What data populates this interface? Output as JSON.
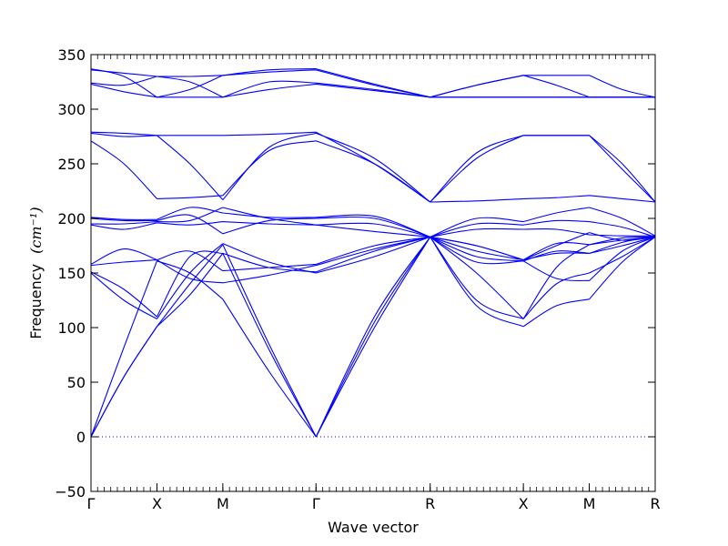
{
  "chart_data": {
    "type": "line",
    "xlabel": "Wave vector",
    "ylabel": "Frequency",
    "ylabel_unit": "(cm⁻¹)",
    "ylim": [
      -50,
      350
    ],
    "yticks": [
      -50,
      0,
      50,
      100,
      150,
      200,
      250,
      300,
      350
    ],
    "high_symmetry_points": [
      {
        "label": "Γ",
        "position": 0
      },
      {
        "label": "X",
        "position": 1
      },
      {
        "label": "M",
        "position": 2
      },
      {
        "label": "Γ",
        "position": 3.414
      },
      {
        "label": "R",
        "position": 5.146
      },
      {
        "label": "X",
        "position": 6.56
      },
      {
        "label": "M",
        "position": 7.56
      },
      {
        "label": "R",
        "position": 8.56
      }
    ],
    "zero_line": true,
    "line_color": "#0000ff",
    "bands": [
      {
        "x": [
          0,
          0.5,
          1,
          1.5,
          2,
          2.7,
          3.414,
          4.3,
          5.146,
          5.85,
          6.56,
          7.06,
          7.56,
          8.06,
          8.56
        ],
        "y": [
          0,
          55,
          101,
          130,
          168,
          80,
          0,
          100,
          183,
          120,
          101,
          120,
          126,
          160,
          183
        ]
      },
      {
        "x": [
          0,
          0.5,
          1,
          1.5,
          2,
          2.7,
          3.414,
          4.3,
          5.146,
          5.85,
          6.56,
          7.06,
          7.56,
          8.06,
          8.56
        ],
        "y": [
          0,
          55,
          101,
          140,
          176,
          85,
          0,
          105,
          183,
          125,
          108,
          140,
          150,
          165,
          183
        ]
      },
      {
        "x": [
          0,
          0.5,
          1,
          1.5,
          2,
          2.7,
          3.414,
          4.3,
          5.146,
          5.85,
          6.56,
          7.06,
          7.56,
          8.06,
          8.56
        ],
        "y": [
          0,
          82,
          161,
          150,
          126,
          60,
          0,
          110,
          183,
          165,
          161,
          145,
          143,
          170,
          183
        ]
      },
      {
        "x": [
          0,
          0.5,
          1,
          1.5,
          2,
          2.7,
          3.414,
          4.3,
          5.146,
          5.85,
          6.56,
          7.06,
          7.56,
          8.06,
          8.56
        ],
        "y": [
          150,
          125,
          108,
          150,
          177,
          160,
          150,
          165,
          183,
          160,
          161,
          170,
          168,
          175,
          183
        ]
      },
      {
        "x": [
          0,
          0.5,
          1,
          1.5,
          2,
          2.7,
          3.414,
          4.3,
          5.146,
          5.85,
          6.56,
          7.06,
          7.56,
          8.06,
          8.56
        ],
        "y": [
          151,
          135,
          110,
          165,
          168,
          155,
          151,
          170,
          183,
          150,
          108,
          155,
          176,
          180,
          183
        ]
      },
      {
        "x": [
          0,
          0.5,
          1,
          1.5,
          2,
          2.7,
          3.414,
          4.3,
          5.146,
          5.85,
          6.56,
          7.06,
          7.56,
          8.06,
          8.56
        ],
        "y": [
          157,
          160,
          162,
          145,
          141,
          148,
          157,
          172,
          183,
          170,
          162,
          175,
          187,
          180,
          183
        ]
      },
      {
        "x": [
          0,
          0.5,
          1,
          1.5,
          2,
          2.7,
          3.414,
          4.3,
          5.146,
          5.85,
          6.56,
          7.06,
          7.56,
          8.06,
          8.56
        ],
        "y": [
          158,
          172,
          162,
          170,
          152,
          155,
          158,
          175,
          183,
          175,
          162,
          177,
          176,
          182,
          183
        ]
      },
      {
        "x": [
          0,
          0.5,
          1,
          1.5,
          2,
          2.7,
          3.414,
          4.3,
          5.146,
          5.85,
          6.56,
          7.06,
          7.56,
          8.06,
          8.56
        ],
        "y": [
          194,
          190,
          196,
          194,
          197,
          195,
          194,
          188,
          183,
          195,
          194,
          198,
          197,
          192,
          183
        ]
      },
      {
        "x": [
          0,
          0.5,
          1,
          1.5,
          2,
          2.7,
          3.414,
          4.3,
          5.146,
          5.85,
          6.56,
          7.06,
          7.56,
          8.06,
          8.56
        ],
        "y": [
          195,
          195,
          197,
          198,
          210,
          200,
          194,
          195,
          183,
          200,
          197,
          205,
          210,
          200,
          184
        ]
      },
      {
        "x": [
          0,
          0.5,
          1,
          1.5,
          2,
          2.7,
          3.414,
          4.3,
          5.146,
          5.85,
          6.56,
          7.06,
          7.56,
          8.06,
          8.56
        ],
        "y": [
          200,
          198,
          198,
          203,
          186,
          198,
          200,
          200,
          183,
          190,
          190,
          190,
          185,
          184,
          184
        ]
      },
      {
        "x": [
          0,
          0.5,
          1,
          1.5,
          2,
          2.7,
          3.414,
          4.3,
          5.146,
          5.85,
          6.56,
          7.06,
          7.56,
          8.06,
          8.56
        ],
        "y": [
          201,
          199,
          199,
          210,
          205,
          201,
          201,
          202,
          183,
          175,
          162,
          168,
          168,
          178,
          184
        ]
      },
      {
        "x": [
          0,
          0.5,
          1,
          1.5,
          2,
          2.7,
          3.414,
          4.3,
          5.146,
          5.85,
          6.56,
          7.06,
          7.56,
          8.06,
          8.56
        ],
        "y": [
          271,
          250,
          218,
          219,
          221,
          262,
          271,
          250,
          215,
          255,
          276,
          276,
          276,
          250,
          215
        ]
      },
      {
        "x": [
          0,
          0.5,
          1,
          1.5,
          2,
          2.7,
          3.414,
          4.3,
          5.146,
          5.85,
          6.56,
          7.06,
          7.56,
          8.06,
          8.56
        ],
        "y": [
          278,
          275,
          276,
          250,
          217,
          265,
          278,
          255,
          215,
          216,
          218,
          219,
          221,
          218,
          215
        ]
      },
      {
        "x": [
          0,
          0.5,
          1,
          1.5,
          2,
          2.7,
          3.414,
          4.3,
          5.146,
          5.85,
          6.56,
          7.06,
          7.56,
          8.06,
          8.56
        ],
        "y": [
          279,
          278,
          276,
          276,
          276,
          277,
          279,
          250,
          215,
          260,
          276,
          276,
          276,
          245,
          215
        ]
      },
      {
        "x": [
          0,
          0.5,
          1,
          1.5,
          2,
          2.7,
          3.414,
          4.3,
          5.146,
          5.85,
          6.56,
          7.06,
          7.56,
          8.06,
          8.56
        ],
        "y": [
          323,
          316,
          311,
          311,
          311,
          318,
          323,
          317,
          311,
          311,
          311,
          311,
          311,
          311,
          311
        ]
      },
      {
        "x": [
          0,
          0.5,
          1,
          1.5,
          2,
          2.7,
          3.414,
          4.3,
          5.146,
          5.85,
          6.56,
          7.06,
          7.56,
          8.06,
          8.56
        ],
        "y": [
          324,
          322,
          330,
          325,
          311,
          325,
          324,
          318,
          311,
          322,
          331,
          322,
          311,
          311,
          311
        ]
      },
      {
        "x": [
          0,
          0.5,
          1,
          1.5,
          2,
          2.7,
          3.414,
          4.3,
          5.146,
          5.85,
          6.56,
          7.06,
          7.56,
          8.06,
          8.56
        ],
        "y": [
          336,
          333,
          330,
          330,
          331,
          334,
          336,
          322,
          311,
          322,
          331,
          331,
          331,
          318,
          311
        ]
      },
      {
        "x": [
          0,
          0.5,
          1,
          1.5,
          2,
          2.7,
          3.414,
          4.3,
          5.146,
          5.85,
          6.56,
          7.06,
          7.56,
          8.06,
          8.56
        ],
        "y": [
          337,
          330,
          311,
          318,
          331,
          336,
          337,
          323,
          311,
          311,
          311,
          311,
          311,
          311,
          311
        ]
      }
    ]
  }
}
